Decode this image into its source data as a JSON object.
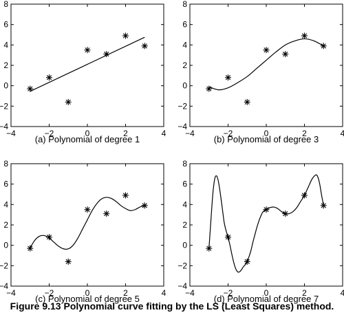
{
  "figure": {
    "caption": "Figure 9.13  Polynomial curve fitting by the LS (Least Squares) method."
  },
  "chart_data": [
    {
      "type": "scatter",
      "title": "(a) Polynomial of degree 1",
      "xlim": [
        -4,
        4
      ],
      "ylim": [
        -4,
        8
      ],
      "xticks": [
        -4,
        -2,
        0,
        2,
        4
      ],
      "yticks": [
        -4,
        -2,
        0,
        2,
        4,
        6,
        8
      ],
      "points": {
        "x": [
          -3,
          -2,
          -1,
          0,
          1,
          2,
          3
        ],
        "y": [
          -0.3,
          0.8,
          -1.6,
          3.5,
          3.1,
          4.9,
          3.9
        ]
      },
      "fit_curve": {
        "degree": 1,
        "x": [
          -3,
          3
        ],
        "y": [
          -0.55,
          4.75
        ]
      }
    },
    {
      "type": "scatter",
      "title": "(b) Polynomial of degree 3",
      "xlim": [
        -4,
        4
      ],
      "ylim": [
        -4,
        8
      ],
      "xticks": [
        -4,
        -2,
        0,
        2,
        4
      ],
      "yticks": [
        -4,
        -2,
        0,
        2,
        4,
        6,
        8
      ],
      "points": {
        "x": [
          -3,
          -2,
          -1,
          0,
          1,
          2,
          3
        ],
        "y": [
          -0.3,
          0.8,
          -1.6,
          3.5,
          3.1,
          4.9,
          3.9
        ]
      },
      "fit_curve": {
        "degree": 3,
        "x": [
          -3,
          -2.5,
          -2,
          -1.5,
          -1,
          -0.5,
          0,
          0.5,
          1,
          1.5,
          2,
          2.5,
          3
        ],
        "y": [
          -0.1,
          -0.4,
          -0.2,
          0.3,
          0.9,
          1.7,
          2.5,
          3.3,
          4.0,
          4.4,
          4.6,
          4.4,
          3.9
        ]
      }
    },
    {
      "type": "scatter",
      "title": "(c) Polynomial of degree 5",
      "xlim": [
        -4,
        4
      ],
      "ylim": [
        -4,
        8
      ],
      "xticks": [
        -4,
        -2,
        0,
        2,
        4
      ],
      "yticks": [
        -4,
        -2,
        0,
        2,
        4,
        6,
        8
      ],
      "points": {
        "x": [
          -3,
          -2,
          -1,
          0,
          1,
          2,
          3
        ],
        "y": [
          -0.3,
          0.8,
          -1.6,
          3.5,
          3.1,
          4.9,
          3.9
        ]
      },
      "fit_curve": {
        "degree": 5,
        "x": [
          -3,
          -2.75,
          -2.5,
          -2.25,
          -2,
          -1.75,
          -1.5,
          -1.25,
          -1,
          -0.75,
          -0.5,
          -0.25,
          0,
          0.25,
          0.5,
          0.75,
          1,
          1.25,
          1.5,
          1.75,
          2,
          2.25,
          2.5,
          2.75,
          3
        ],
        "y": [
          -0.25,
          0.5,
          0.9,
          0.95,
          0.7,
          0.3,
          -0.1,
          -0.35,
          -0.35,
          0.0,
          0.7,
          1.6,
          2.5,
          3.4,
          4.1,
          4.55,
          4.7,
          4.6,
          4.3,
          3.9,
          3.6,
          3.4,
          3.5,
          3.75,
          3.9
        ]
      }
    },
    {
      "type": "scatter",
      "title": "(d) Polynomial of degree 7",
      "xlim": [
        -4,
        4
      ],
      "ylim": [
        -4,
        8
      ],
      "xticks": [
        -4,
        -2,
        0,
        2,
        4
      ],
      "yticks": [
        -4,
        -2,
        0,
        2,
        4,
        6,
        8
      ],
      "points": {
        "x": [
          -3,
          -2,
          -1,
          0,
          1,
          2,
          3
        ],
        "y": [
          -0.3,
          0.8,
          -1.6,
          3.5,
          3.1,
          4.9,
          3.9
        ]
      },
      "fit_curve": {
        "degree": 7,
        "x": [
          -3,
          -2.9,
          -2.8,
          -2.7,
          -2.6,
          -2.5,
          -2.4,
          -2.3,
          -2.2,
          -2.1,
          -2,
          -1.9,
          -1.8,
          -1.7,
          -1.6,
          -1.5,
          -1.4,
          -1.3,
          -1.2,
          -1.1,
          -1,
          -0.9,
          -0.8,
          -0.7,
          -0.6,
          -0.5,
          -0.4,
          -0.3,
          -0.2,
          -0.1,
          0,
          0.2,
          0.4,
          0.6,
          0.8,
          1,
          1.2,
          1.4,
          1.6,
          1.8,
          2,
          2.2,
          2.4,
          2.6,
          2.7,
          2.8,
          2.9,
          3
        ],
        "y": [
          -0.3,
          2.4,
          5.0,
          6.5,
          6.8,
          6.2,
          5.0,
          3.6,
          2.2,
          1.4,
          0.8,
          0.0,
          -0.9,
          -1.7,
          -2.3,
          -2.6,
          -2.6,
          -2.4,
          -2.1,
          -1.9,
          -1.6,
          -1.1,
          -0.5,
          0.3,
          1.0,
          1.7,
          2.3,
          2.8,
          3.2,
          3.4,
          3.5,
          3.7,
          3.75,
          3.6,
          3.3,
          3.1,
          3.1,
          3.3,
          3.7,
          4.3,
          4.9,
          5.7,
          6.5,
          6.9,
          6.7,
          6.0,
          4.9,
          3.9
        ]
      }
    }
  ]
}
